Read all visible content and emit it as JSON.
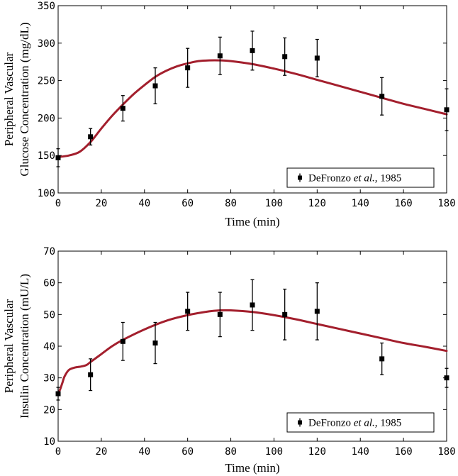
{
  "legend_label": {
    "prefix": "DeFronzo ",
    "etal": "et al.",
    "suffix": ", 1985"
  },
  "colors": {
    "model_curve": "#a31f2d",
    "data_points": "#000000"
  },
  "chart_data": [
    {
      "type": "line",
      "ylabel_line1": "Peripheral Vascular",
      "ylabel_line2": "Glucose Concentration (mg/dL)",
      "xlabel": "Time (min)",
      "xlim": [
        0,
        180
      ],
      "ylim": [
        100,
        350
      ],
      "xticks": [
        0,
        20,
        40,
        60,
        80,
        100,
        120,
        140,
        160,
        180
      ],
      "yticks": [
        100,
        150,
        200,
        250,
        300,
        350
      ],
      "legend_placement": "bottom-right",
      "model": {
        "name": "model",
        "x": [
          0,
          5,
          10,
          15,
          20,
          25,
          30,
          35,
          40,
          45,
          50,
          55,
          60,
          65,
          70,
          75,
          80,
          90,
          100,
          110,
          120,
          130,
          140,
          150,
          160,
          170,
          180
        ],
        "y": [
          148,
          150,
          155,
          168,
          186,
          203,
          218,
          232,
          244,
          255,
          263,
          269,
          273,
          276,
          277,
          277,
          276,
          272,
          266,
          259,
          251,
          243,
          235,
          227,
          219,
          212,
          205
        ]
      },
      "observations": {
        "name": "DeFronzo et al., 1985",
        "x": [
          0,
          15,
          30,
          45,
          60,
          75,
          90,
          105,
          120,
          150,
          180
        ],
        "y": [
          147,
          175,
          213,
          243,
          267,
          283,
          290,
          282,
          280,
          229,
          211
        ],
        "err": [
          12,
          11,
          17,
          24,
          26,
          25,
          26,
          25,
          25,
          25,
          28
        ]
      }
    },
    {
      "type": "line",
      "ylabel_line1": "Peripheral Vascular",
      "ylabel_line2": "Insulin Concentration (mU/L)",
      "xlabel": "Time (min)",
      "xlim": [
        0,
        180
      ],
      "ylim": [
        10,
        70
      ],
      "xticks": [
        0,
        20,
        40,
        60,
        80,
        100,
        120,
        140,
        160,
        180
      ],
      "yticks": [
        10,
        20,
        30,
        40,
        50,
        60,
        70
      ],
      "legend_placement": "bottom-right",
      "model": {
        "name": "model",
        "x": [
          0,
          1,
          2,
          3,
          5,
          8,
          10,
          13,
          15,
          20,
          25,
          30,
          40,
          50,
          60,
          70,
          75,
          80,
          90,
          100,
          110,
          120,
          130,
          140,
          150,
          160,
          170,
          180
        ],
        "y": [
          25,
          26.5,
          28.5,
          30.5,
          32.5,
          33.3,
          33.5,
          34,
          35,
          37.5,
          40,
          42,
          45.3,
          48,
          49.8,
          51,
          51.3,
          51.3,
          50.8,
          49.8,
          48.5,
          47,
          45.5,
          44,
          42.5,
          41,
          39.8,
          38.5
        ]
      },
      "observations": {
        "name": "DeFronzo et al., 1985",
        "x": [
          0,
          15,
          30,
          45,
          60,
          75,
          90,
          105,
          120,
          150,
          180
        ],
        "y": [
          25,
          31,
          41.5,
          41,
          51,
          50,
          53,
          50,
          51,
          36,
          30
        ],
        "err": [
          2,
          5,
          6,
          6.5,
          6,
          7,
          8,
          8,
          9,
          5,
          3
        ]
      }
    }
  ]
}
